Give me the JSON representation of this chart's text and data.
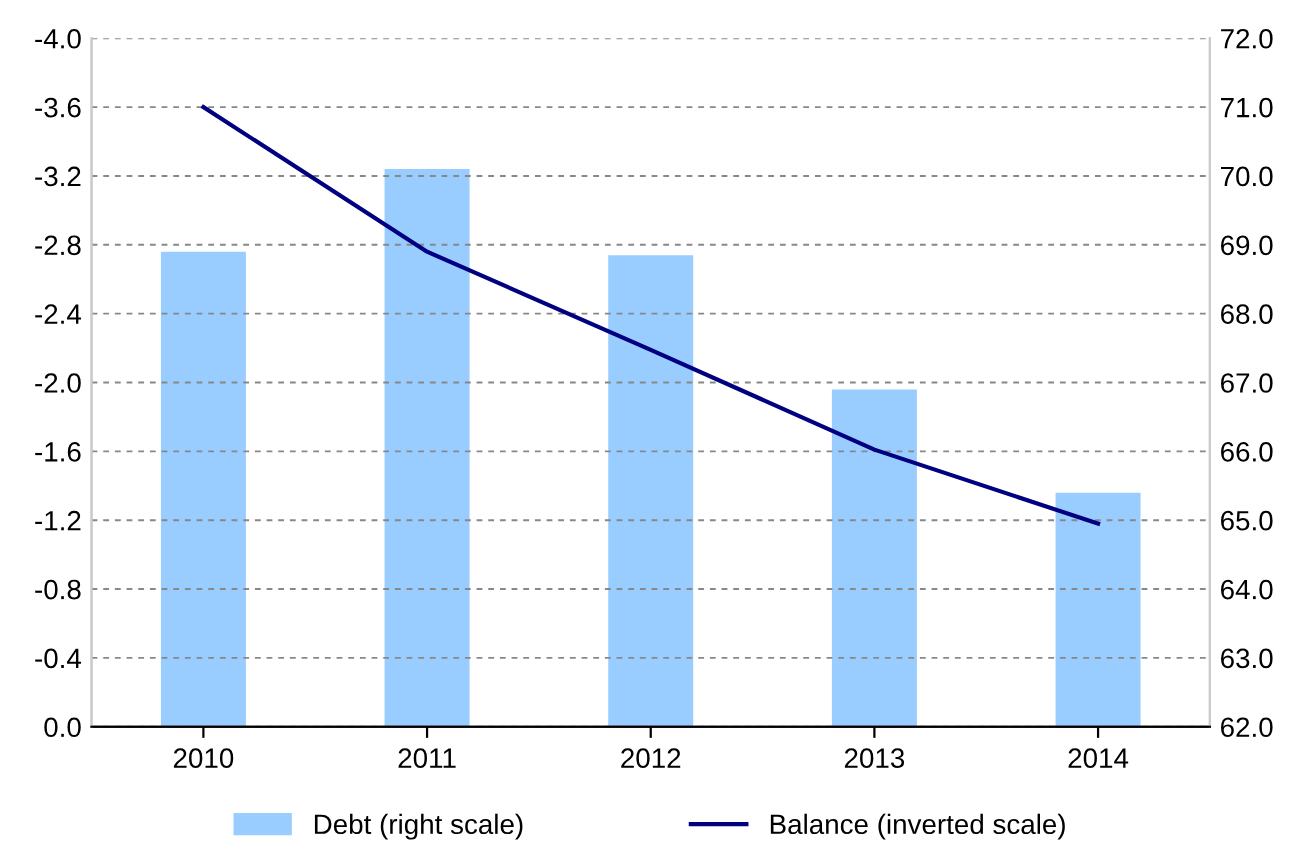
{
  "chart_data": {
    "type": "bar",
    "categories": [
      "2010",
      "2011",
      "2012",
      "2013",
      "2014"
    ],
    "series": [
      {
        "name": "Debt (right scale)",
        "axis": "y2",
        "color": "#99ccff",
        "values": [
          68.9,
          70.1,
          68.85,
          66.9,
          65.4
        ]
      },
      {
        "name": "Balance (inverted scale)",
        "type": "line",
        "axis": "y",
        "color": "#000080",
        "values": [
          -3.6,
          -2.76,
          -2.19,
          -1.61,
          -1.18
        ]
      }
    ],
    "ylim": [
      0,
      -4
    ],
    "yticks": [
      {
        "value": 0,
        "label": "0.0"
      },
      {
        "value": -0.4,
        "label": "-0.4"
      },
      {
        "value": -0.8,
        "label": "-0.8"
      },
      {
        "value": -1.2,
        "label": "-1.2"
      },
      {
        "value": -1.6,
        "label": "-1.6"
      },
      {
        "value": -2.0,
        "label": "-2.0"
      },
      {
        "value": -2.4,
        "label": "-2.4"
      },
      {
        "value": -2.8,
        "label": "-2.8"
      },
      {
        "value": -3.2,
        "label": "-3.2"
      },
      {
        "value": -3.6,
        "label": "-3.6"
      },
      {
        "value": -4.0,
        "label": "-4.0"
      }
    ],
    "y2lim": [
      62,
      72
    ],
    "y2ticks": [
      {
        "value": 62,
        "label": "62.0"
      },
      {
        "value": 63,
        "label": "63.0"
      },
      {
        "value": 64,
        "label": "64.0"
      },
      {
        "value": 65,
        "label": "65.0"
      },
      {
        "value": 66,
        "label": "66.0"
      },
      {
        "value": 67,
        "label": "67.0"
      },
      {
        "value": 68,
        "label": "68.0"
      },
      {
        "value": 69,
        "label": "69.0"
      },
      {
        "value": 70,
        "label": "70.0"
      },
      {
        "value": 71,
        "label": "71.0"
      },
      {
        "value": 72,
        "label": "72.0"
      }
    ],
    "grid": "y",
    "legend": "bottom",
    "marker": "none",
    "line_style": "solid"
  }
}
